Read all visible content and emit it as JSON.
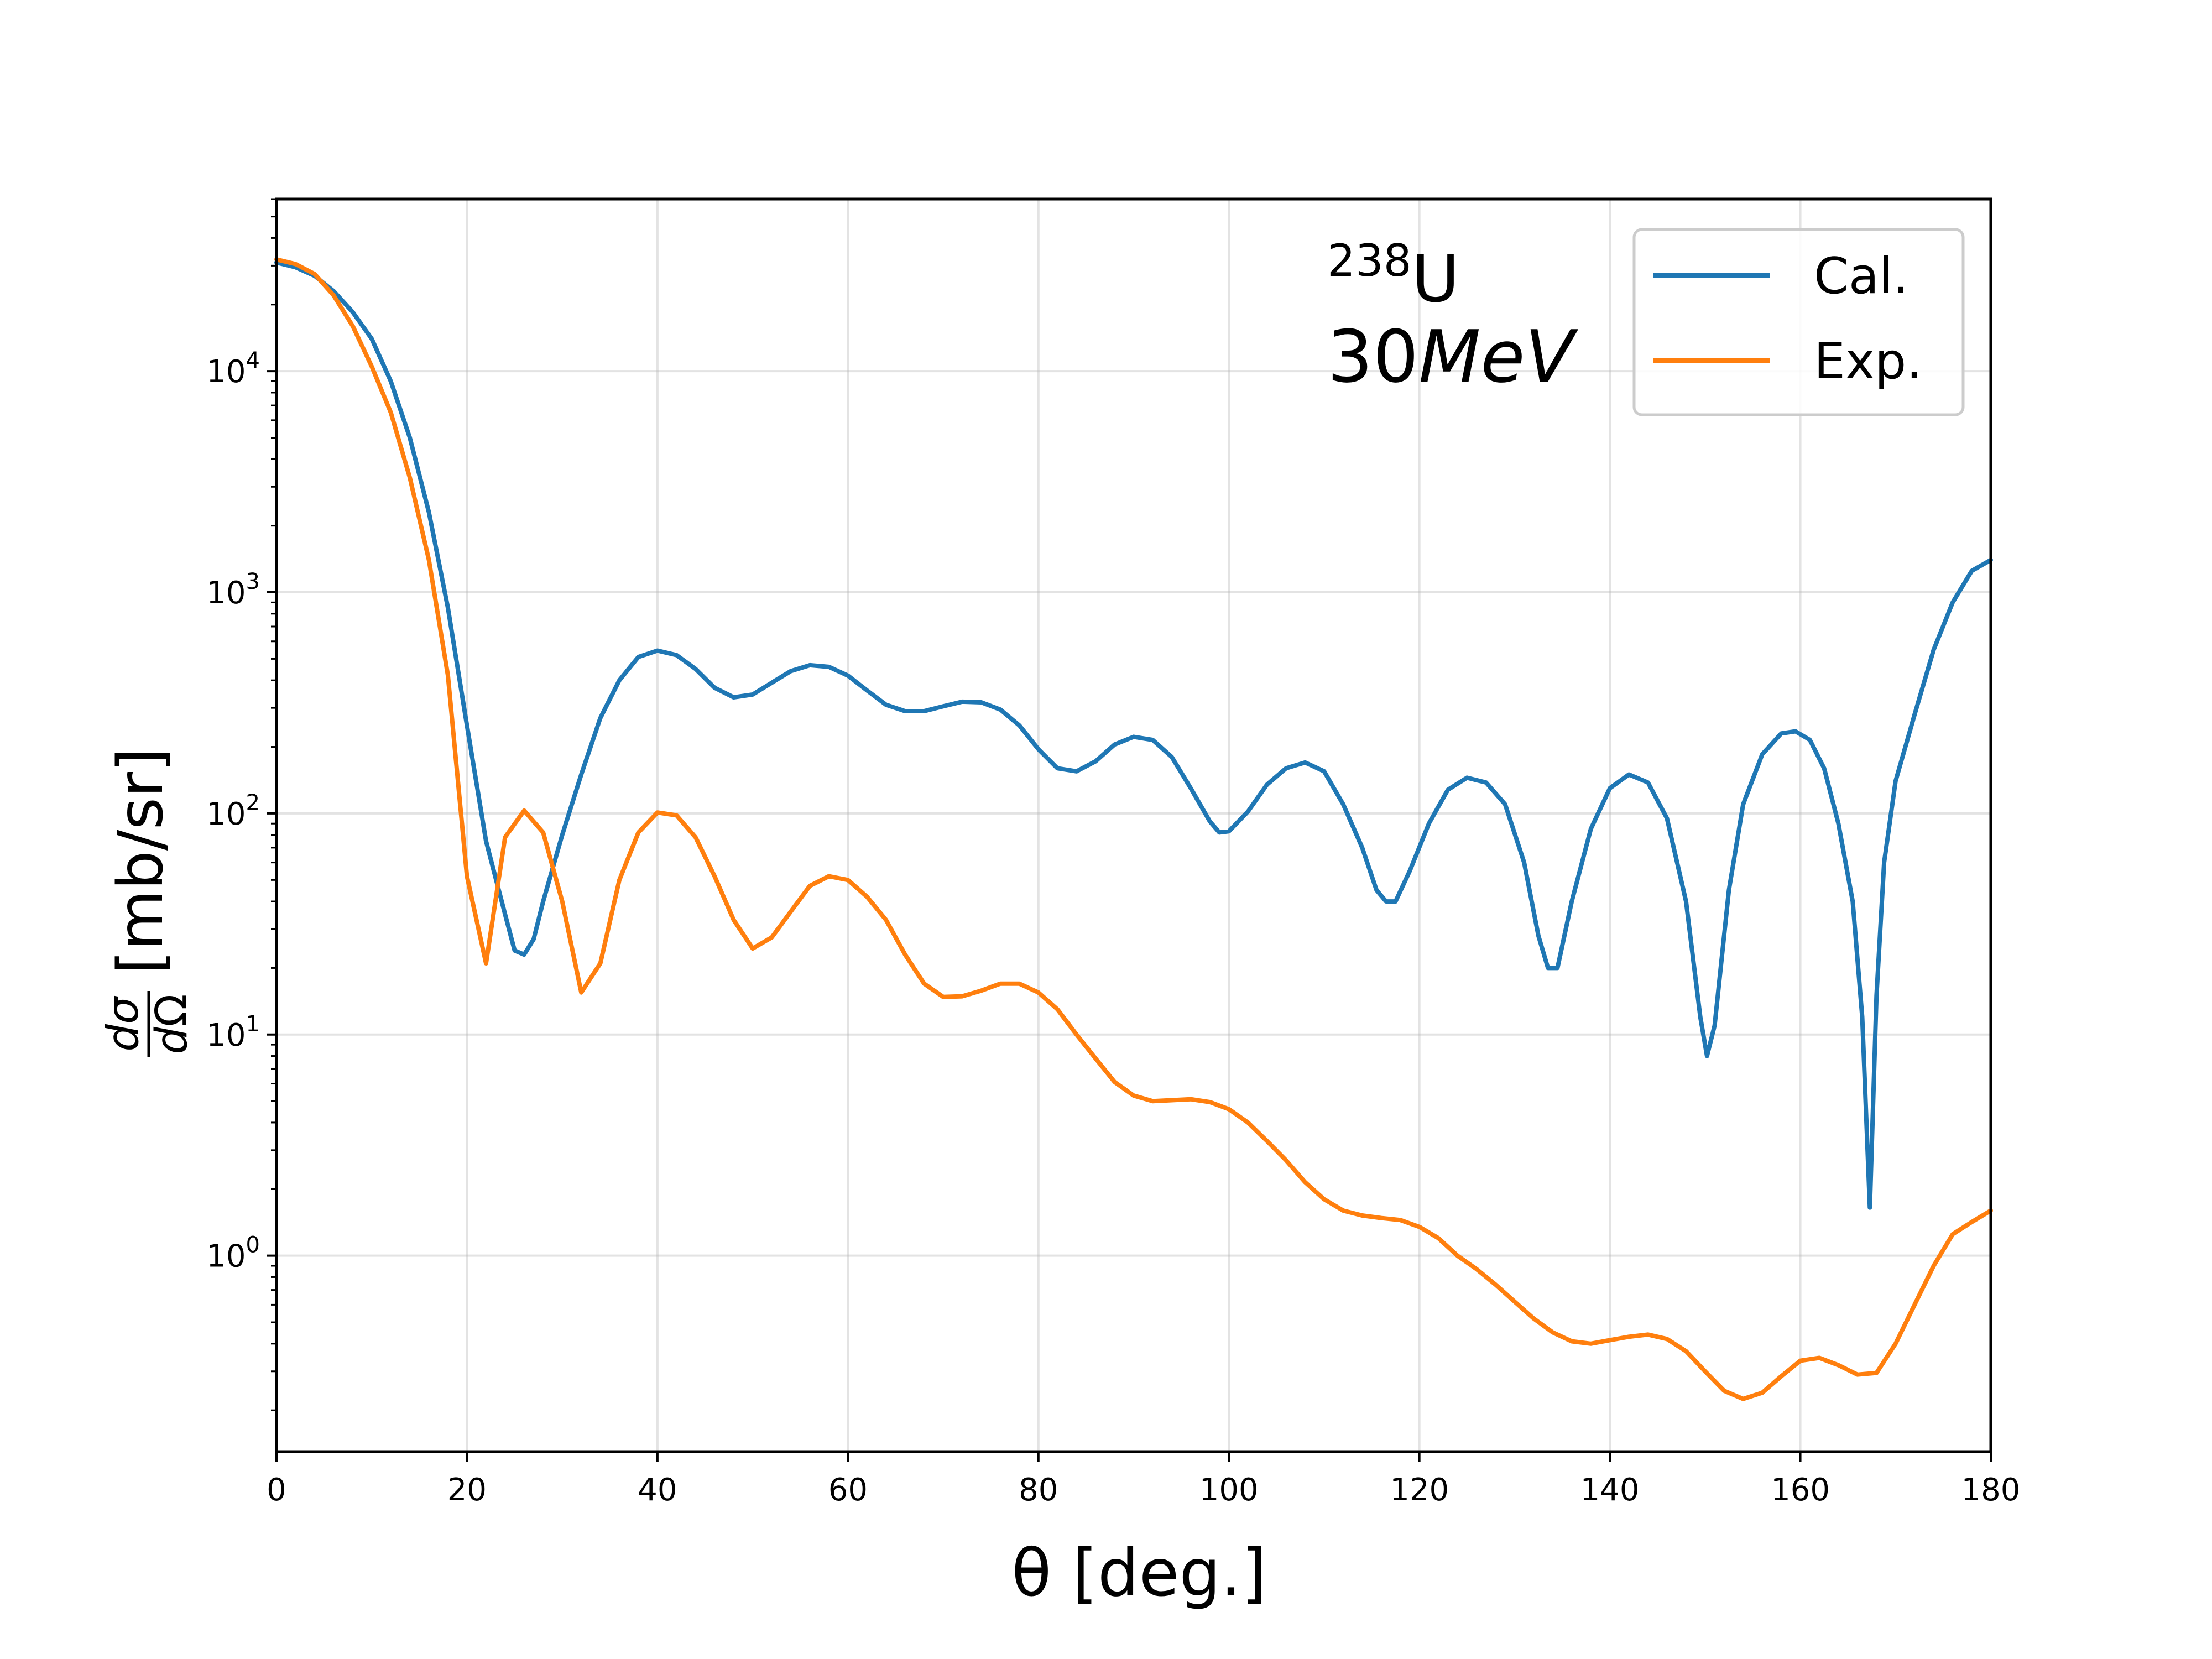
{
  "chart_data": {
    "type": "line",
    "xlabel": "θ [deg.]",
    "ylabel": "dσ/dΩ [mb/sr]",
    "xlim": [
      0,
      180
    ],
    "ylim": [
      0.13,
      60000
    ],
    "yscale": "log",
    "grid": true,
    "legend_position": "top-right",
    "annotation": {
      "isotope_mass": "238",
      "isotope_symbol": "U",
      "energy_value": "30",
      "energy_unit": "MeV"
    },
    "x_ticks": [
      "0",
      "20",
      "40",
      "60",
      "80",
      "100",
      "120",
      "140",
      "160",
      "180"
    ],
    "y_ticks": [
      {
        "base": "10",
        "exp": "0"
      },
      {
        "base": "10",
        "exp": "1"
      },
      {
        "base": "10",
        "exp": "2"
      },
      {
        "base": "10",
        "exp": "3"
      },
      {
        "base": "10",
        "exp": "4"
      }
    ],
    "series": [
      {
        "name": "Cal.",
        "color": "#1f77b4",
        "points": [
          [
            0,
            31000
          ],
          [
            2,
            29500
          ],
          [
            4,
            27000
          ],
          [
            6,
            23000
          ],
          [
            8,
            18500
          ],
          [
            10,
            14000
          ],
          [
            12,
            9000
          ],
          [
            14,
            5000
          ],
          [
            16,
            2300
          ],
          [
            18,
            850
          ],
          [
            20,
            250
          ],
          [
            22,
            75
          ],
          [
            24,
            35
          ],
          [
            25,
            24
          ],
          [
            26,
            23
          ],
          [
            27,
            27
          ],
          [
            28,
            40
          ],
          [
            30,
            80
          ],
          [
            32,
            150
          ],
          [
            34,
            270
          ],
          [
            36,
            400
          ],
          [
            38,
            510
          ],
          [
            40,
            545
          ],
          [
            42,
            520
          ],
          [
            44,
            450
          ],
          [
            46,
            370
          ],
          [
            48,
            335
          ],
          [
            50,
            345
          ],
          [
            52,
            390
          ],
          [
            54,
            440
          ],
          [
            56,
            468
          ],
          [
            58,
            460
          ],
          [
            60,
            420
          ],
          [
            62,
            360
          ],
          [
            64,
            310
          ],
          [
            66,
            290
          ],
          [
            68,
            290
          ],
          [
            70,
            305
          ],
          [
            72,
            320
          ],
          [
            74,
            318
          ],
          [
            76,
            295
          ],
          [
            78,
            250
          ],
          [
            80,
            195
          ],
          [
            82,
            160
          ],
          [
            84,
            155
          ],
          [
            86,
            172
          ],
          [
            88,
            205
          ],
          [
            90,
            222
          ],
          [
            92,
            215
          ],
          [
            94,
            180
          ],
          [
            96,
            130
          ],
          [
            98,
            92
          ],
          [
            99,
            82
          ],
          [
            100,
            83
          ],
          [
            102,
            102
          ],
          [
            104,
            135
          ],
          [
            106,
            160
          ],
          [
            108,
            170
          ],
          [
            110,
            155
          ],
          [
            112,
            110
          ],
          [
            114,
            70
          ],
          [
            115.5,
            45
          ],
          [
            116.5,
            40
          ],
          [
            117.5,
            40
          ],
          [
            119,
            55
          ],
          [
            121,
            90
          ],
          [
            123,
            128
          ],
          [
            125,
            145
          ],
          [
            127,
            138
          ],
          [
            129,
            110
          ],
          [
            131,
            60
          ],
          [
            132.5,
            28
          ],
          [
            133.5,
            20
          ],
          [
            134.5,
            20
          ],
          [
            136,
            40
          ],
          [
            138,
            85
          ],
          [
            140,
            130
          ],
          [
            142,
            150
          ],
          [
            144,
            138
          ],
          [
            146,
            95
          ],
          [
            148,
            40
          ],
          [
            149.5,
            12
          ],
          [
            150.2,
            8
          ],
          [
            151,
            11
          ],
          [
            152.5,
            45
          ],
          [
            154,
            110
          ],
          [
            156,
            185
          ],
          [
            158,
            230
          ],
          [
            159.5,
            235
          ],
          [
            161,
            215
          ],
          [
            162.5,
            160
          ],
          [
            164,
            90
          ],
          [
            165.5,
            40
          ],
          [
            166.5,
            12
          ],
          [
            167.3,
            1.65
          ],
          [
            168,
            15
          ],
          [
            168.8,
            60
          ],
          [
            170,
            140
          ],
          [
            172,
            280
          ],
          [
            174,
            550
          ],
          [
            176,
            900
          ],
          [
            178,
            1250
          ],
          [
            180,
            1400
          ]
        ]
      },
      {
        "name": "Exp.",
        "color": "#ff7f0e",
        "points": [
          [
            0,
            32000
          ],
          [
            2,
            30500
          ],
          [
            4,
            27500
          ],
          [
            6,
            22000
          ],
          [
            8,
            16000
          ],
          [
            10,
            10500
          ],
          [
            12,
            6500
          ],
          [
            14,
            3300
          ],
          [
            16,
            1400
          ],
          [
            18,
            420
          ],
          [
            20,
            52
          ],
          [
            22,
            21
          ],
          [
            24,
            78
          ],
          [
            26,
            103
          ],
          [
            28,
            82
          ],
          [
            30,
            40
          ],
          [
            32,
            15.5
          ],
          [
            34,
            21
          ],
          [
            36,
            50
          ],
          [
            38,
            82
          ],
          [
            40,
            101
          ],
          [
            42,
            98
          ],
          [
            44,
            78
          ],
          [
            46,
            52
          ],
          [
            48,
            33
          ],
          [
            50,
            24.5
          ],
          [
            52,
            27.5
          ],
          [
            54,
            36
          ],
          [
            56,
            47
          ],
          [
            58,
            52
          ],
          [
            60,
            50
          ],
          [
            62,
            42
          ],
          [
            64,
            33
          ],
          [
            66,
            23
          ],
          [
            68,
            17
          ],
          [
            70,
            14.8
          ],
          [
            72,
            14.9
          ],
          [
            74,
            15.8
          ],
          [
            76,
            17
          ],
          [
            78,
            17
          ],
          [
            80,
            15.5
          ],
          [
            82,
            13
          ],
          [
            84,
            10
          ],
          [
            86,
            7.8
          ],
          [
            88,
            6.1
          ],
          [
            90,
            5.3
          ],
          [
            92,
            5.0
          ],
          [
            94,
            5.05
          ],
          [
            96,
            5.1
          ],
          [
            98,
            4.95
          ],
          [
            100,
            4.6
          ],
          [
            102,
            4.0
          ],
          [
            104,
            3.3
          ],
          [
            106,
            2.7
          ],
          [
            108,
            2.15
          ],
          [
            110,
            1.8
          ],
          [
            112,
            1.6
          ],
          [
            114,
            1.52
          ],
          [
            116,
            1.48
          ],
          [
            118,
            1.45
          ],
          [
            120,
            1.35
          ],
          [
            122,
            1.2
          ],
          [
            124,
            1.0
          ],
          [
            126,
            0.87
          ],
          [
            128,
            0.74
          ],
          [
            130,
            0.62
          ],
          [
            132,
            0.52
          ],
          [
            134,
            0.45
          ],
          [
            136,
            0.41
          ],
          [
            138,
            0.4
          ],
          [
            140,
            0.415
          ],
          [
            142,
            0.43
          ],
          [
            144,
            0.44
          ],
          [
            146,
            0.42
          ],
          [
            148,
            0.37
          ],
          [
            150,
            0.3
          ],
          [
            152,
            0.245
          ],
          [
            154,
            0.225
          ],
          [
            156,
            0.24
          ],
          [
            158,
            0.285
          ],
          [
            160,
            0.335
          ],
          [
            162,
            0.345
          ],
          [
            164,
            0.32
          ],
          [
            166,
            0.29
          ],
          [
            168,
            0.295
          ],
          [
            170,
            0.4
          ],
          [
            172,
            0.6
          ],
          [
            174,
            0.9
          ],
          [
            176,
            1.25
          ],
          [
            178,
            1.42
          ],
          [
            180,
            1.6
          ]
        ]
      }
    ]
  }
}
